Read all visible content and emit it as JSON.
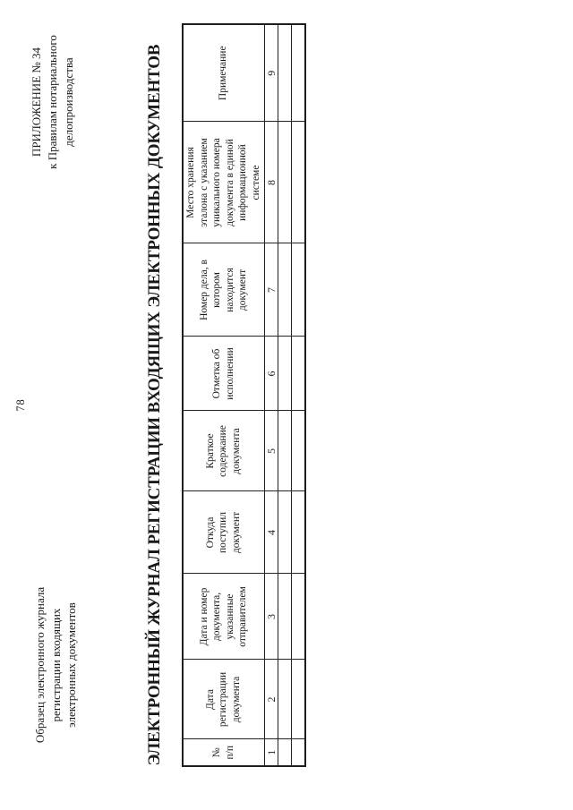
{
  "page_number": "78",
  "caption_left": {
    "lines": [
      "Образец электронного журнала",
      "регистрации входящих",
      "электронных документов"
    ]
  },
  "caption_right": {
    "lines": [
      "ПРИЛОЖЕНИЕ № 34",
      "к Правилам нотариального",
      "делопроизводства"
    ]
  },
  "title": "ЭЛЕКТРОННЫЙ ЖУРНАЛ РЕГИСТРАЦИИ ВХОДЯЩИХ ЭЛЕКТРОННЫХ ДОКУМЕНТОВ",
  "table": {
    "columns": [
      {
        "number": "1",
        "header_lines": [
          "№",
          "п/п"
        ]
      },
      {
        "number": "2",
        "header_lines": [
          "Дата",
          "регистрации",
          "документа"
        ]
      },
      {
        "number": "3",
        "header_lines": [
          "Дата и номер",
          "документа,",
          "указанные",
          "отправителем"
        ]
      },
      {
        "number": "4",
        "header_lines": [
          "Откуда",
          "поступил",
          "документ"
        ]
      },
      {
        "number": "5",
        "header_lines": [
          "Краткое",
          "содержание",
          "документа"
        ]
      },
      {
        "number": "6",
        "header_lines": [
          "Отметка об",
          "исполнении"
        ]
      },
      {
        "number": "7",
        "header_lines": [
          "Номер дела, в",
          "котором",
          "находится",
          "документ"
        ]
      },
      {
        "number": "8",
        "header_lines": [
          "Место хранения",
          "эталона с указанием",
          "уникального номера",
          "документа в единой",
          "информационной",
          "системе"
        ]
      },
      {
        "number": "9",
        "header_lines": [
          "Примечание"
        ]
      }
    ],
    "empty_row_count": 2
  },
  "colors": {
    "ink": "#1a1a1a",
    "paper": "#ffffff",
    "line": "#232323"
  }
}
